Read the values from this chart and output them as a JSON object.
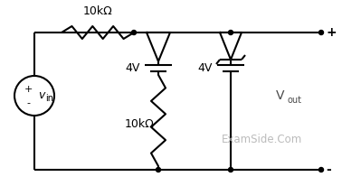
{
  "bg_color": "#ffffff",
  "line_color": "#000000",
  "dot_color": "#000000",
  "label_color_watermark": "#b0b0b0",
  "resistor_top_label": "10kΩ",
  "resistor_bot_label": "10kΩ",
  "battery1_label": "4V",
  "battery2_label": "4V",
  "vin_label": "v",
  "vin_sub": "in",
  "vout_label": "V",
  "vout_sub": "out",
  "plus_top": "+",
  "minus_bot": "-",
  "src_plus": "+",
  "src_minus": "-",
  "watermark": "ExamSide.Com"
}
